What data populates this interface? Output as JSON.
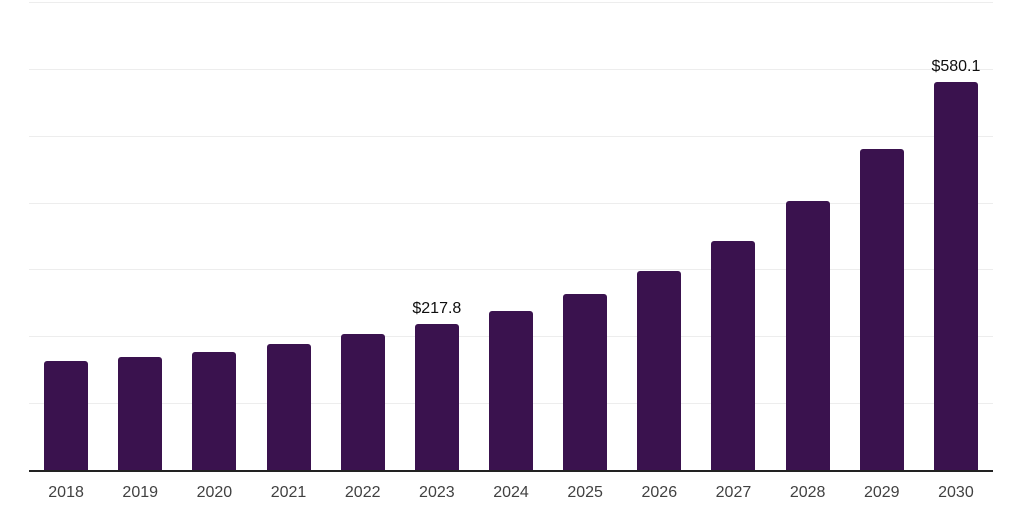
{
  "chart_data": {
    "type": "bar",
    "title": "",
    "subtitle": "",
    "xlabel": "",
    "ylabel": "",
    "categories": [
      "2018",
      "2019",
      "2020",
      "2021",
      "2022",
      "2023",
      "2024",
      "2025",
      "2026",
      "2027",
      "2028",
      "2029",
      "2030"
    ],
    "values": [
      163,
      169,
      176,
      189,
      203,
      217.8,
      238,
      263,
      298,
      342,
      402,
      480,
      580.1
    ],
    "data_labels": [
      "",
      "",
      "",
      "",
      "",
      "$217.8",
      "",
      "",
      "",
      "",
      "",
      "",
      "$580.1"
    ],
    "ylim": [
      0,
      700
    ],
    "gridline_step": 100,
    "grid": "horizontal-only",
    "legend": "none",
    "colors": {
      "bar": "#3A124E",
      "gridline": "#EDEDED",
      "axis_line": "#222222",
      "tick_label": "#414141",
      "data_label": "#0F0F0F",
      "background": "#FFFFFF"
    }
  }
}
